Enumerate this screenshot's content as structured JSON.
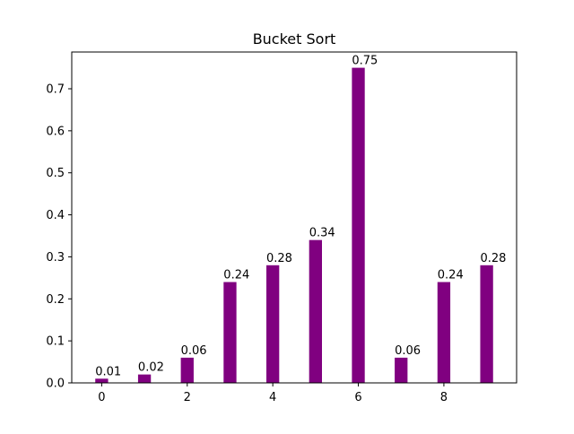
{
  "chart_data": {
    "type": "bar",
    "title": "Bucket Sort",
    "xlabel": "",
    "ylabel": "",
    "x": [
      0,
      1,
      2,
      3,
      4,
      5,
      6,
      7,
      8,
      9
    ],
    "values": [
      0.01,
      0.02,
      0.06,
      0.24,
      0.28,
      0.34,
      0.75,
      0.06,
      0.24,
      0.28
    ],
    "data_labels": [
      "0.01",
      "0.02",
      "0.06",
      "0.24",
      "0.28",
      "0.34",
      "0.75",
      "0.06",
      "0.24",
      "0.28"
    ],
    "xlim": [
      -0.7,
      9.7
    ],
    "ylim": [
      0,
      0.7875
    ],
    "x_ticks": [
      0,
      2,
      4,
      6,
      8
    ],
    "x_tick_labels": [
      "0",
      "2",
      "4",
      "6",
      "8"
    ],
    "y_ticks": [
      0,
      0.1,
      0.2,
      0.3,
      0.4,
      0.5,
      0.6,
      0.7
    ],
    "y_tick_labels": [
      "0.0",
      "0.1",
      "0.2",
      "0.3",
      "0.4",
      "0.5",
      "0.6",
      "0.7"
    ],
    "bar_color": "#800080",
    "grid": false,
    "legend": "none"
  }
}
